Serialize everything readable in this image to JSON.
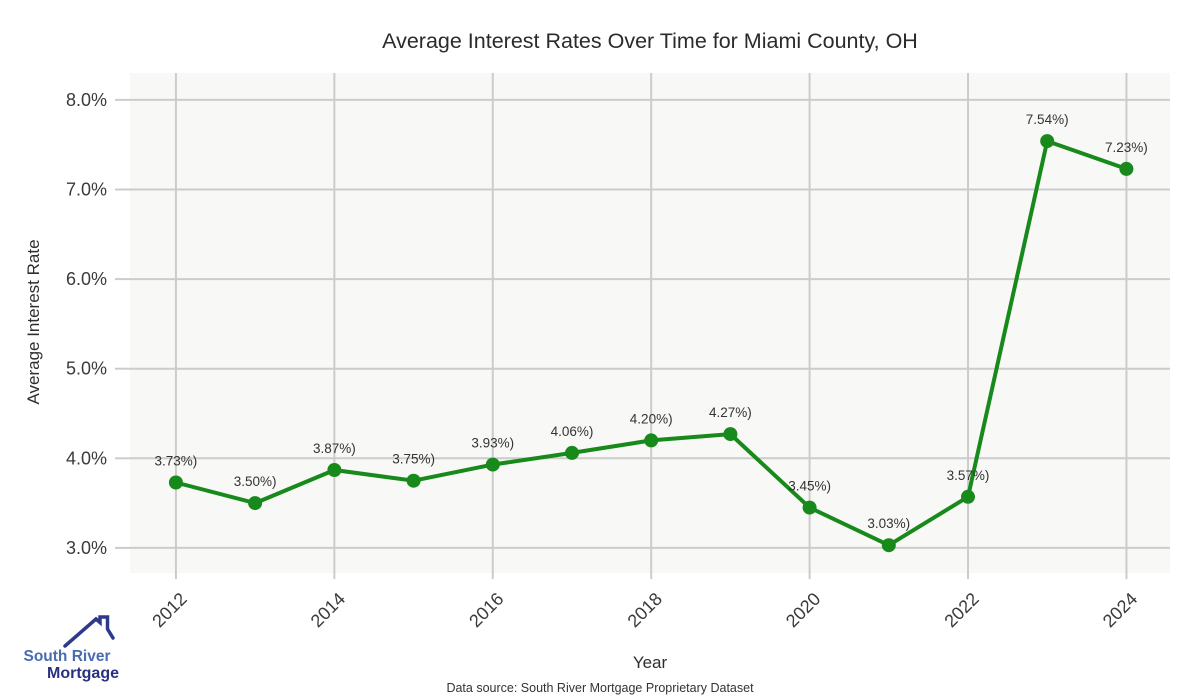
{
  "chart_data": {
    "type": "line",
    "title": "Average Interest Rates Over Time for Miami County, OH",
    "xlabel": "Year",
    "ylabel": "Average Interest Rate",
    "x": [
      2012,
      2013,
      2014,
      2015,
      2016,
      2017,
      2018,
      2019,
      2020,
      2021,
      2022,
      2023,
      2024
    ],
    "series": [
      {
        "name": "Average Interest Rate",
        "values": [
          3.73,
          3.5,
          3.87,
          3.75,
          3.93,
          4.06,
          4.2,
          4.27,
          3.45,
          3.03,
          3.57,
          7.54,
          7.23
        ],
        "point_labels": [
          "3.73%)",
          "3.50%)",
          "3.87%)",
          "3.75%)",
          "3.93%)",
          "4.06%)",
          "4.20%)",
          "4.27%)",
          "3.45%)",
          "3.03%)",
          "3.57%)",
          "7.54%)",
          "7.23%)"
        ],
        "color": "#18891b"
      }
    ],
    "x_ticks": [
      2012,
      2014,
      2016,
      2018,
      2020,
      2022,
      2024
    ],
    "x_tick_labels": [
      "2012",
      "2014",
      "2016",
      "2018",
      "2020",
      "2022",
      "2024"
    ],
    "y_ticks": [
      3.0,
      4.0,
      5.0,
      6.0,
      7.0,
      8.0
    ],
    "y_tick_labels": [
      "3.0%",
      "4.0%",
      "5.0%",
      "6.0%",
      "7.0%",
      "8.0%"
    ],
    "xlim": [
      2011.42,
      2024.55
    ],
    "ylim": [
      2.72,
      8.3
    ],
    "grid": true,
    "legend": false,
    "plot_bg": "#f8f8f7",
    "grid_color": "#cccccc"
  },
  "logo": {
    "line1": "South River",
    "line2": "Mortgage",
    "color_line1": "#4a6cb0",
    "color_line2": "#2a3182",
    "icon_color": "#2d3a8c",
    "icon": "house-roof-icon"
  },
  "footer": {
    "text": "Data source: South River Mortgage Proprietary Dataset"
  }
}
